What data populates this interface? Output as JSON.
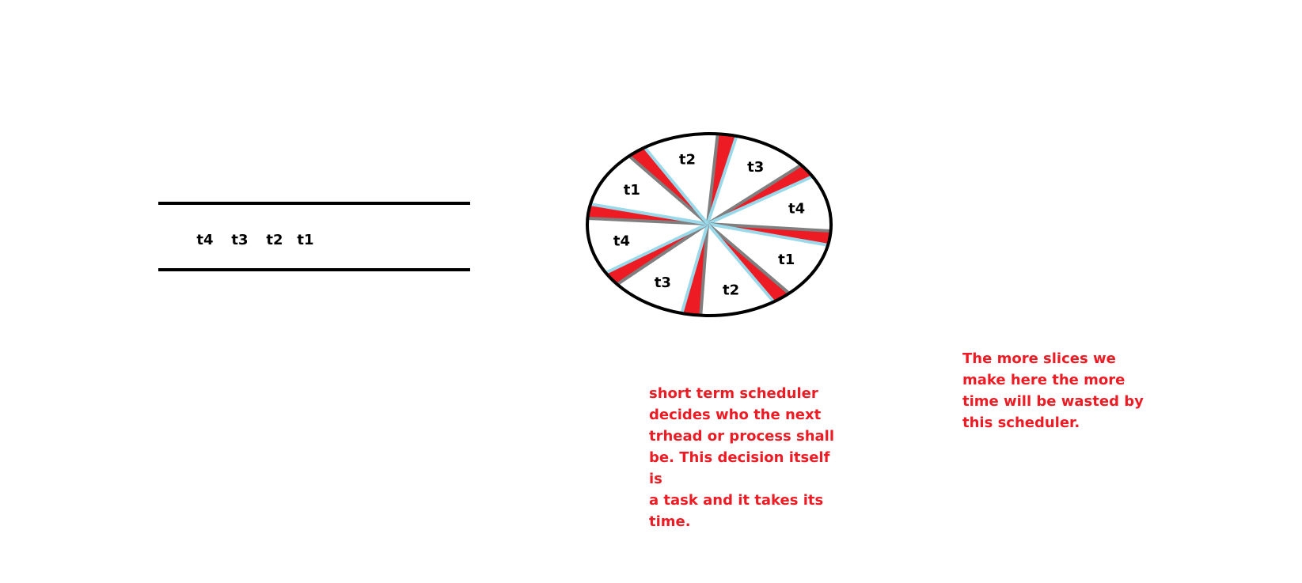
{
  "colors": {
    "line": "#000000",
    "wedge": "#ed1c24",
    "slice_border_a": "#99d9ea",
    "slice_border_b": "#7f7f7f",
    "note_text": "#ed1c24",
    "label_text": "#000000"
  },
  "queue": {
    "items": [
      "t4",
      "t3",
      "t2",
      "t1"
    ]
  },
  "pie": {
    "slice_labels": [
      "t3",
      "t4",
      "t1",
      "t2",
      "t3",
      "t4",
      "t1",
      "t2"
    ]
  },
  "notes": {
    "scheduler": "short term scheduler\ndecides who the next\ntrhead or process shall\nbe. This decision itself is\na task and it takes its\ntime.",
    "slices": "The more slices we\nmake here the more\ntime will be wasted by\nthis scheduler."
  }
}
